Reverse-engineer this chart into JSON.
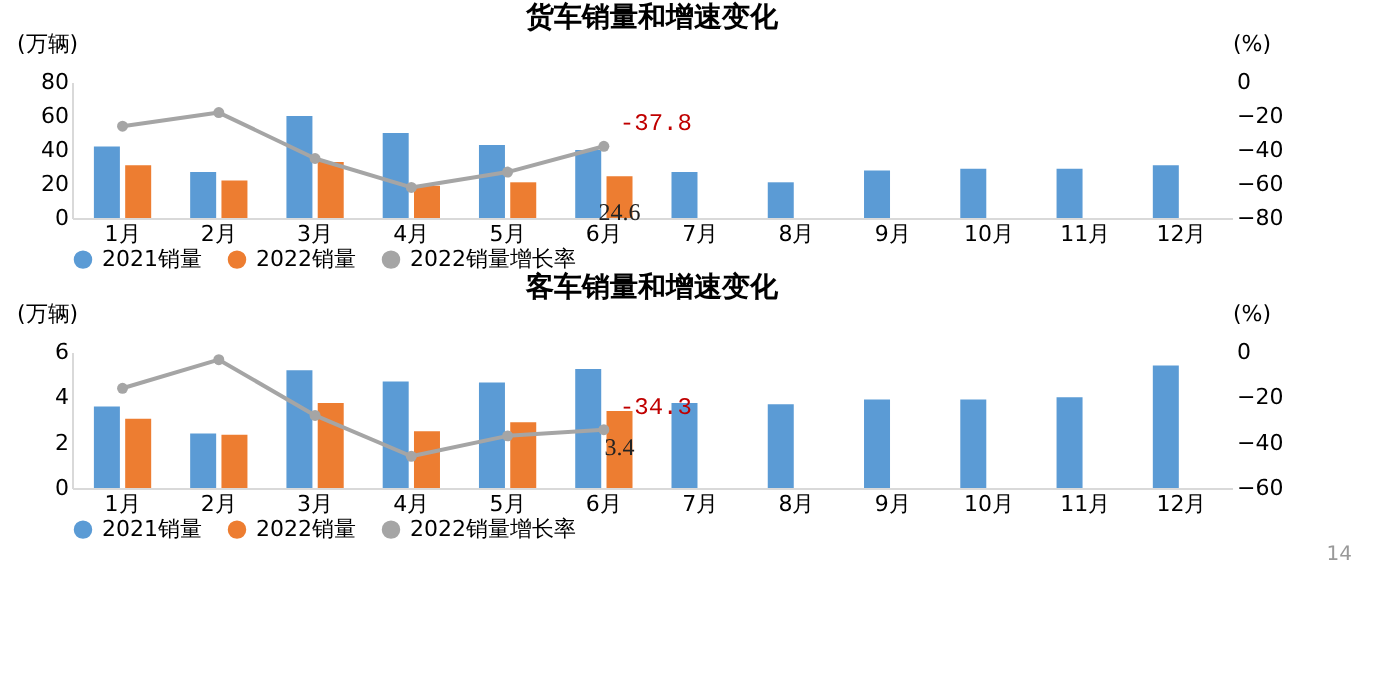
{
  "chart_data": [
    {
      "type": "bar",
      "title": "货车销量和增速变化",
      "ylabel": "(万辆)",
      "y2label": "(%)",
      "categories": [
        "1月",
        "2月",
        "3月",
        "4月",
        "5月",
        "6月",
        "7月",
        "8月",
        "9月",
        "10月",
        "11月",
        "12月"
      ],
      "series": [
        {
          "name": "2021销量",
          "color": "#5b9bd5",
          "values": [
            42,
            27,
            60,
            50,
            43,
            40,
            27,
            21,
            28,
            29,
            29,
            31
          ]
        },
        {
          "name": "2022销量",
          "color": "#ed7d31",
          "values": [
            31,
            22,
            33,
            19,
            21,
            24.6,
            null,
            null,
            null,
            null,
            null,
            null
          ],
          "value_labels": [
            null,
            null,
            null,
            null,
            null,
            "24.6",
            null,
            null,
            null,
            null,
            null,
            null
          ]
        },
        {
          "name": "2022销量增长率",
          "type": "line",
          "axis": "y2",
          "color": "#a5a5a5",
          "marker": "circle",
          "values": [
            -26,
            -18,
            -45,
            -62,
            -53,
            -37.8,
            null,
            null,
            null,
            null,
            null,
            null
          ],
          "value_labels": [
            null,
            null,
            null,
            null,
            null,
            "-37.8",
            null,
            null,
            null,
            null,
            null,
            null
          ]
        }
      ],
      "ylim": [
        0,
        80
      ],
      "yticks": [
        0,
        20,
        40,
        60,
        80
      ],
      "y2lim": [
        -80,
        0
      ],
      "y2ticks": [
        -80,
        -60,
        -40,
        -20,
        0
      ],
      "grid": false,
      "legend": "bottom"
    },
    {
      "type": "bar",
      "title": "客车销量和增速变化",
      "ylabel": "(万辆)",
      "y2label": "(%)",
      "categories": [
        "1月",
        "2月",
        "3月",
        "4月",
        "5月",
        "6月",
        "7月",
        "8月",
        "9月",
        "10月",
        "11月",
        "12月"
      ],
      "series": [
        {
          "name": "2021销量",
          "color": "#5b9bd5",
          "values": [
            3.6,
            2.4,
            5.2,
            4.7,
            4.65,
            5.25,
            3.75,
            3.7,
            3.9,
            3.9,
            4.0,
            5.4
          ]
        },
        {
          "name": "2022销量",
          "color": "#ed7d31",
          "values": [
            3.05,
            2.35,
            3.75,
            2.5,
            2.9,
            3.4,
            null,
            null,
            null,
            null,
            null,
            null
          ],
          "value_labels": [
            null,
            null,
            null,
            null,
            null,
            "3.4",
            null,
            null,
            null,
            null,
            null,
            null
          ]
        },
        {
          "name": "2022销量增长率",
          "type": "line",
          "axis": "y2",
          "color": "#a5a5a5",
          "marker": "circle",
          "values": [
            -16,
            -3.4,
            -28,
            -46,
            -37,
            -34.3,
            null,
            null,
            null,
            null,
            null,
            null
          ],
          "value_labels": [
            null,
            null,
            null,
            null,
            null,
            "-34.3",
            null,
            null,
            null,
            null,
            null,
            null
          ]
        }
      ],
      "ylim": [
        0,
        6
      ],
      "yticks": [
        0,
        2,
        4,
        6
      ],
      "y2lim": [
        -60,
        0
      ],
      "y2ticks": [
        -60,
        -40,
        -20,
        0
      ],
      "grid": false,
      "legend": "bottom",
      "annotations": [
        "14"
      ]
    }
  ]
}
